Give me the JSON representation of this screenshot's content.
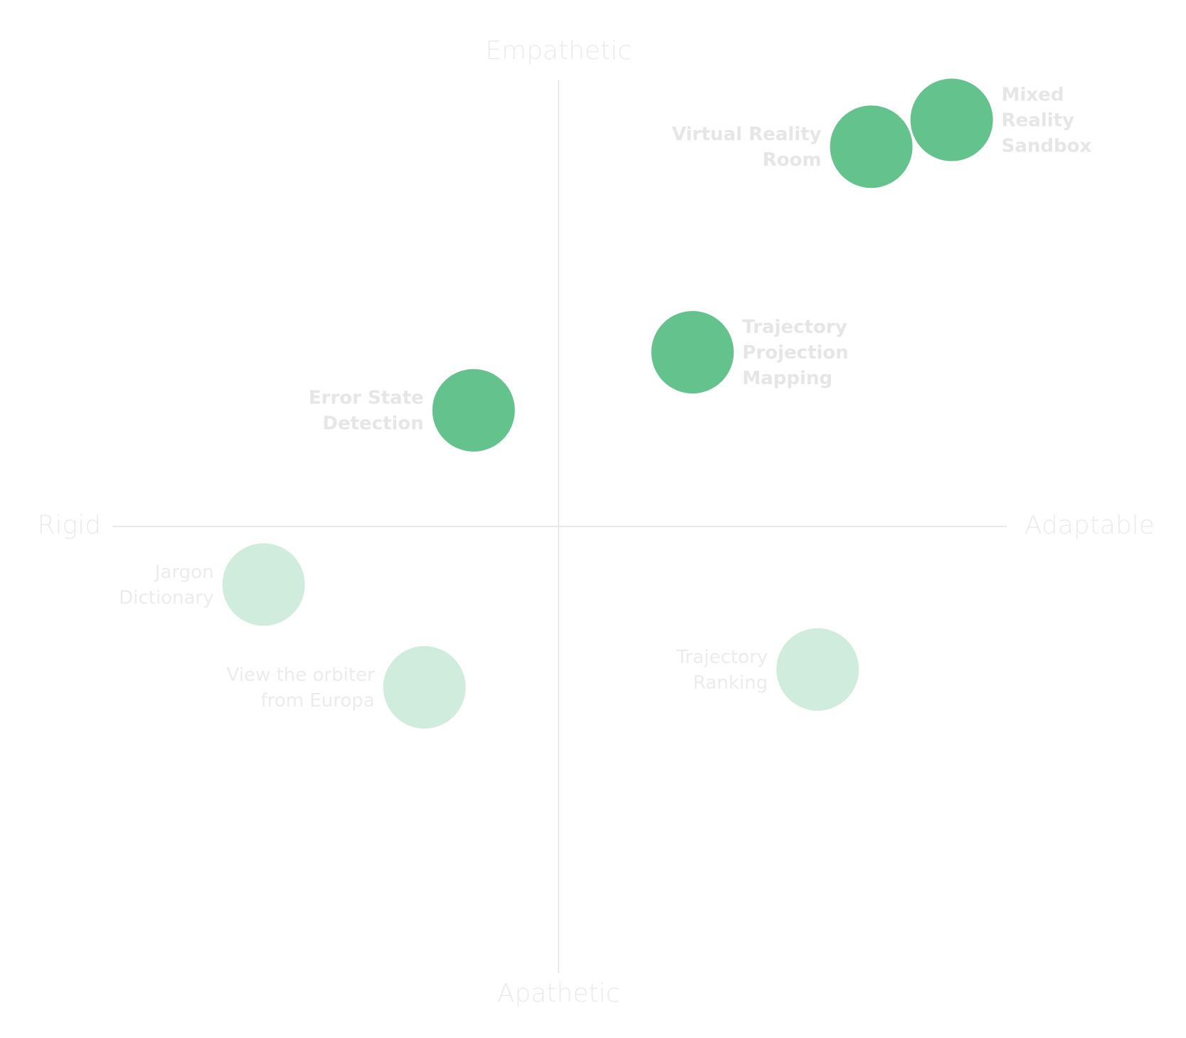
{
  "axes": {
    "top": "Empathetic",
    "bottom": "Apathetic",
    "left": "Rigid",
    "right": "Adaptable"
  },
  "colors": {
    "axis_line": "#e9e9e9",
    "axis_text": "#ebebeb",
    "strong_fill": "#64c28d",
    "weak_fill": "#d0ecdc",
    "label_text": "#e6e6e6"
  },
  "items": [
    {
      "id": "mixed-reality-sandbox",
      "lines": [
        "Mixed",
        "Reality",
        "Sandbox"
      ],
      "adaptability": 0.88,
      "empathy": 0.91,
      "emphasis": "strong"
    },
    {
      "id": "virtual-reality-room",
      "lines": [
        "Virtual Reality",
        "Room"
      ],
      "adaptability": 0.7,
      "empathy": 0.85,
      "emphasis": "strong"
    },
    {
      "id": "trajectory-projection-mapping",
      "lines": [
        "Trajectory",
        "Projection",
        "Mapping"
      ],
      "adaptability": 0.3,
      "empathy": 0.39,
      "emphasis": "strong"
    },
    {
      "id": "error-state-detection",
      "lines": [
        "Error State",
        "Detection"
      ],
      "adaptability": -0.19,
      "empathy": 0.26,
      "emphasis": "strong"
    },
    {
      "id": "jargon-dictionary",
      "lines": [
        "Jargon",
        "Dictionary"
      ],
      "adaptability": -0.66,
      "empathy": -0.13,
      "emphasis": "weak"
    },
    {
      "id": "view-the-orbiter-from-europa",
      "lines": [
        "View the orbiter",
        "from Europa"
      ],
      "adaptability": -0.3,
      "empathy": -0.36,
      "emphasis": "weak"
    },
    {
      "id": "trajectory-ranking",
      "lines": [
        "Trajectory",
        "Ranking"
      ],
      "adaptability": 0.58,
      "empathy": -0.32,
      "emphasis": "weak"
    }
  ]
}
